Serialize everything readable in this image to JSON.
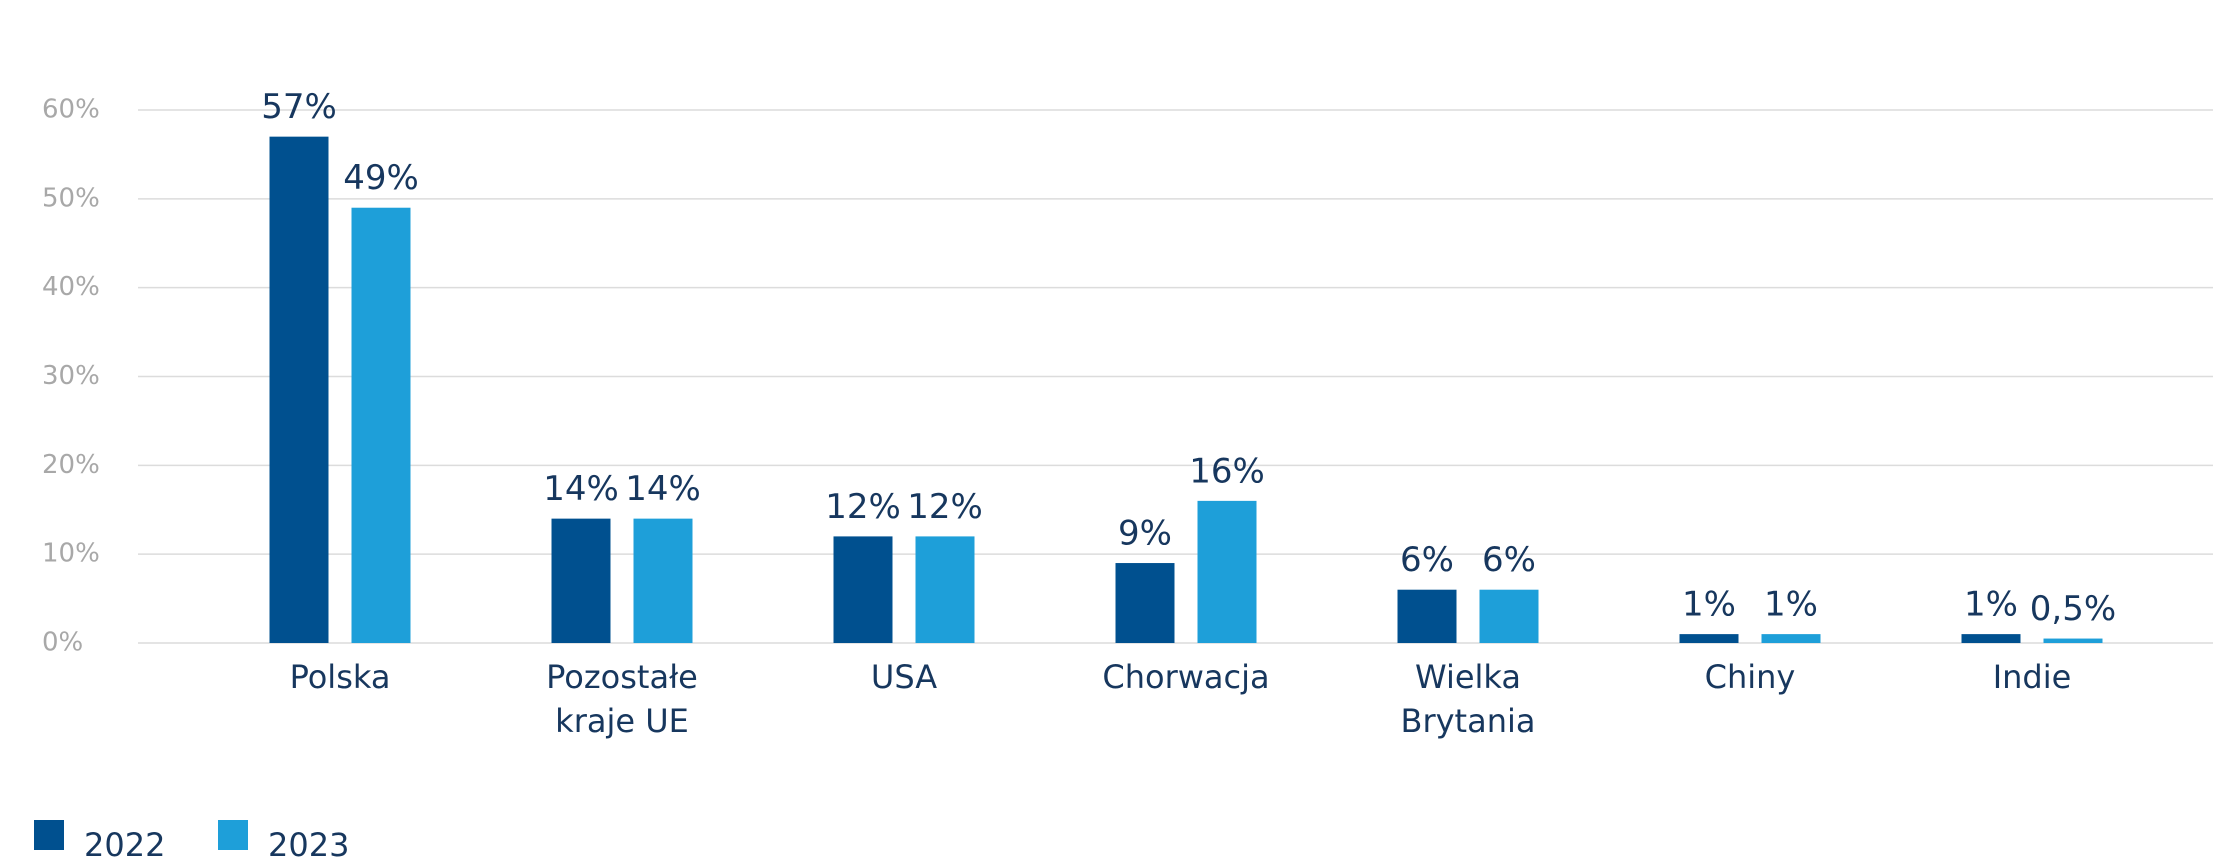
{
  "chart_data": {
    "type": "bar",
    "categories": [
      "Polska",
      "Pozostałe kraje UE",
      "USA",
      "Chorwacja",
      "Wielka Brytania",
      "Chiny",
      "Indie"
    ],
    "series": [
      {
        "name": "2022",
        "color": "#00508f",
        "values": [
          57,
          14,
          12,
          9,
          6,
          1,
          1
        ],
        "value_labels": [
          "57%",
          "14%",
          "12%",
          "9%",
          "6%",
          "1%",
          "1%"
        ]
      },
      {
        "name": "2023",
        "color": "#1e9fd9",
        "values": [
          49,
          14,
          12,
          16,
          6,
          1,
          0.5
        ],
        "value_labels": [
          "49%",
          "14%",
          "12%",
          "16%",
          "6%",
          "1%",
          "0,5%"
        ]
      }
    ],
    "ylim": [
      0,
      60
    ],
    "yticks": [
      {
        "value": 0,
        "label": "0%"
      },
      {
        "value": 10,
        "label": "10%"
      },
      {
        "value": 20,
        "label": "20%"
      },
      {
        "value": 30,
        "label": "30%"
      },
      {
        "value": 40,
        "label": "40%"
      },
      {
        "value": 50,
        "label": "50%"
      },
      {
        "value": 60,
        "label": "60%"
      }
    ],
    "grid": true,
    "legend": "bottom-left"
  }
}
